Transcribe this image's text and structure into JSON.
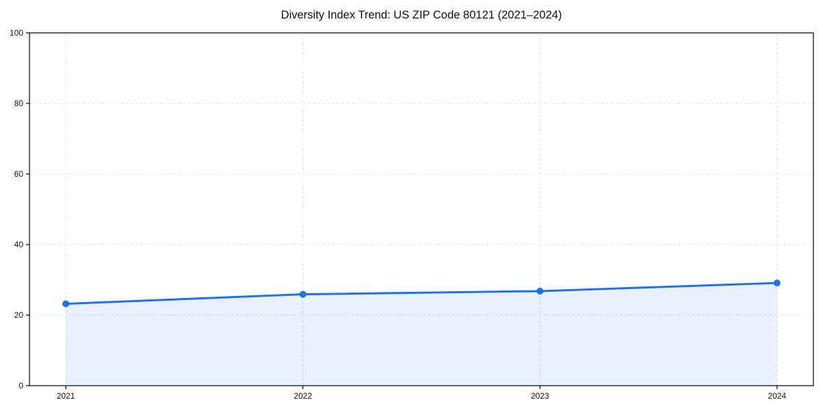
{
  "chart_data": {
    "type": "line",
    "title": "Diversity Index Trend: US ZIP Code 80121 (2021–2024)",
    "x": [
      "2021",
      "2022",
      "2023",
      "2024"
    ],
    "series": [
      {
        "name": "Diversity Index",
        "values": [
          23.2,
          25.9,
          26.8,
          29.1
        ]
      }
    ],
    "xlabel": "",
    "ylabel": "",
    "ylim": [
      0,
      100
    ],
    "yticks": [
      0,
      20,
      40,
      60,
      80,
      100
    ],
    "grid": true,
    "grid_style": "dashed",
    "legend": "none",
    "area_fill": true,
    "line_color": "#1f72e8",
    "fill_opacity": 0.1,
    "marker": "circle",
    "marker_radius": 5,
    "line_width": 3
  }
}
